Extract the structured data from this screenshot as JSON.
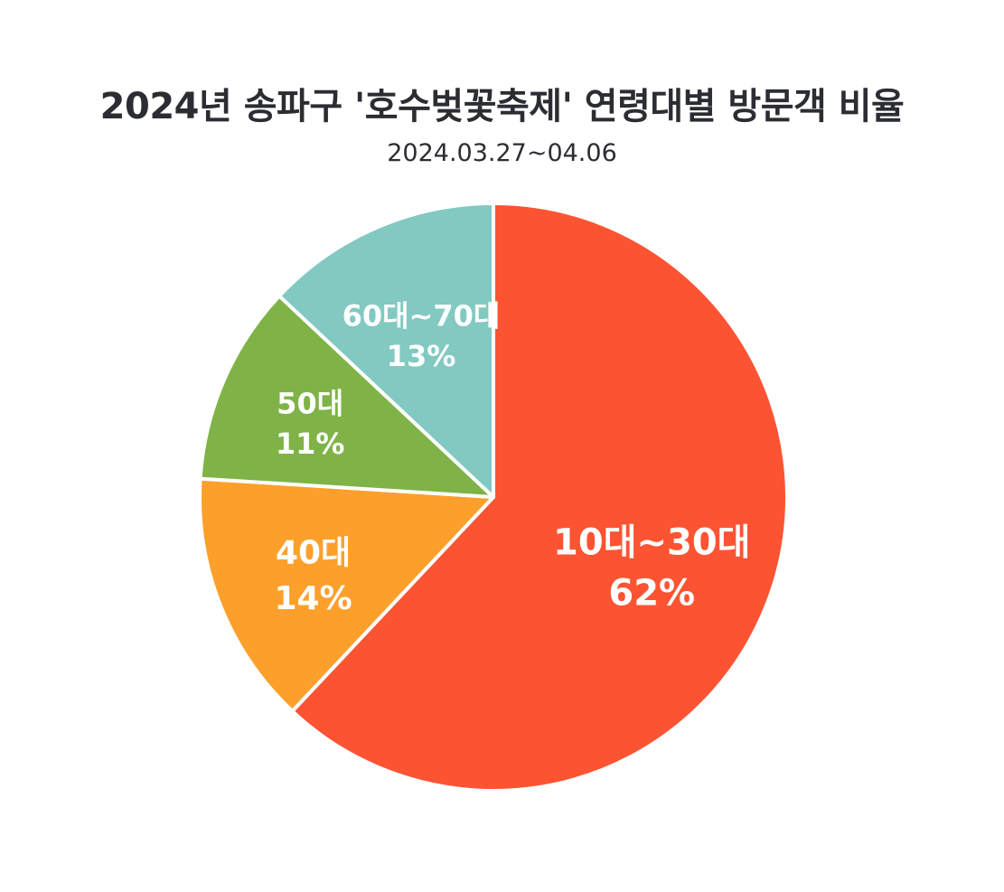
{
  "chart_data": {
    "type": "pie",
    "title": "2024년 송파구 '호수벚꽃축제' 연령대별 방문객 비율",
    "subtitle": "2024.03.27~04.06",
    "slices": [
      {
        "label": "10대~30대",
        "value": 62,
        "value_label": "62%",
        "color": "#fc5432"
      },
      {
        "label": "40대",
        "value": 14,
        "value_label": "14%",
        "color": "#fca02b"
      },
      {
        "label": "50대",
        "value": 11,
        "value_label": "11%",
        "color": "#7fb347"
      },
      {
        "label": "60대~70대",
        "value": 13,
        "value_label": "13%",
        "color": "#82c9c2"
      }
    ],
    "start": "12 o'clock",
    "direction": "clockwise",
    "slice_border_color": "#ffffff"
  }
}
